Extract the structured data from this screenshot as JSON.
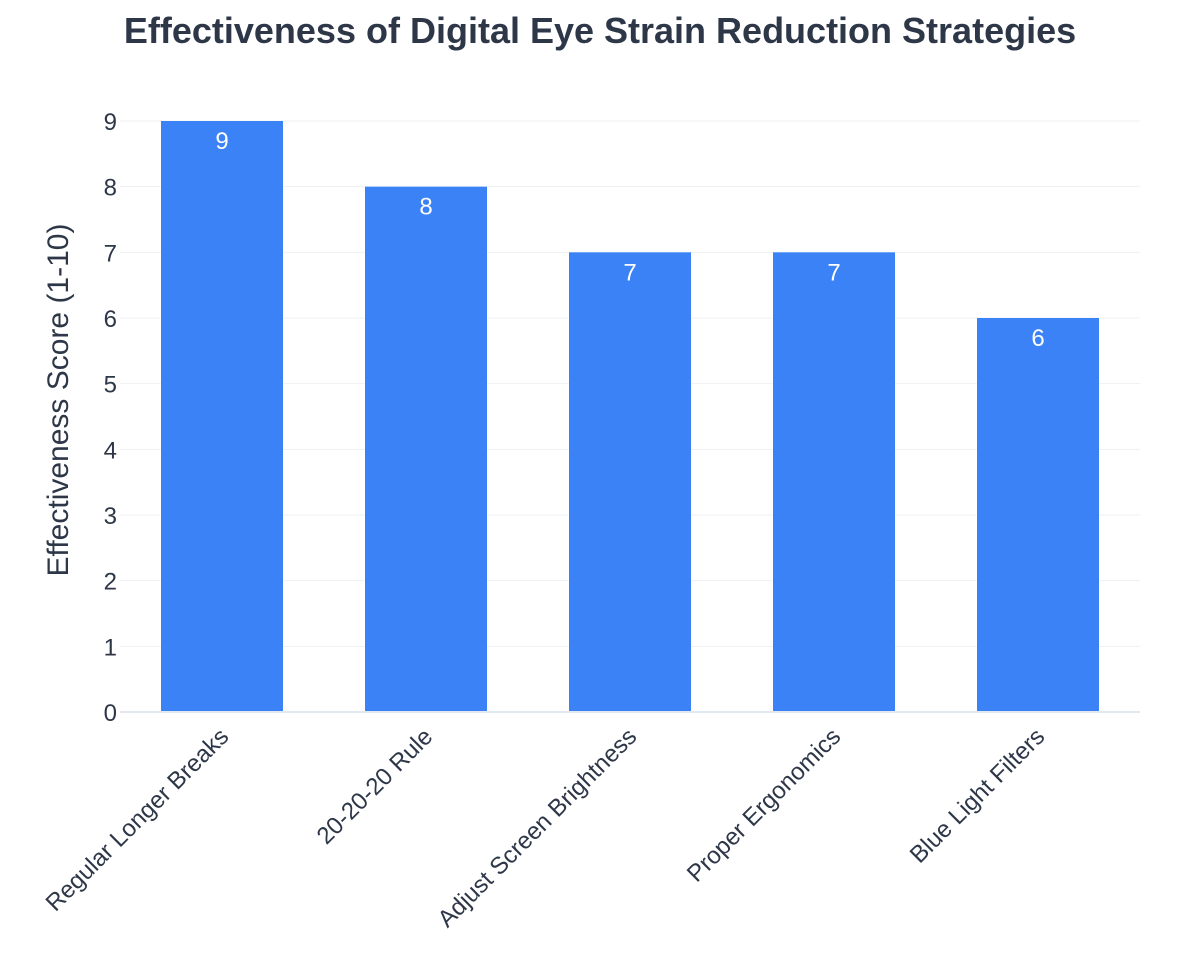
{
  "chart_data": {
    "type": "bar",
    "title": "Effectiveness of Digital Eye Strain Reduction Strategies",
    "xlabel": "",
    "ylabel": "Effectiveness Score (1-10)",
    "categories": [
      "Regular Longer Breaks",
      "20-20-20 Rule",
      "Adjust Screen Brightness",
      "Proper Ergonomics",
      "Blue Light Filters"
    ],
    "values": [
      9,
      8,
      7,
      7,
      6
    ],
    "ylim": [
      0,
      9
    ],
    "yticks": [
      0,
      1,
      2,
      3,
      4,
      5,
      6,
      7,
      8,
      9
    ],
    "grid": true,
    "bar_color": "#3b82f6"
  }
}
